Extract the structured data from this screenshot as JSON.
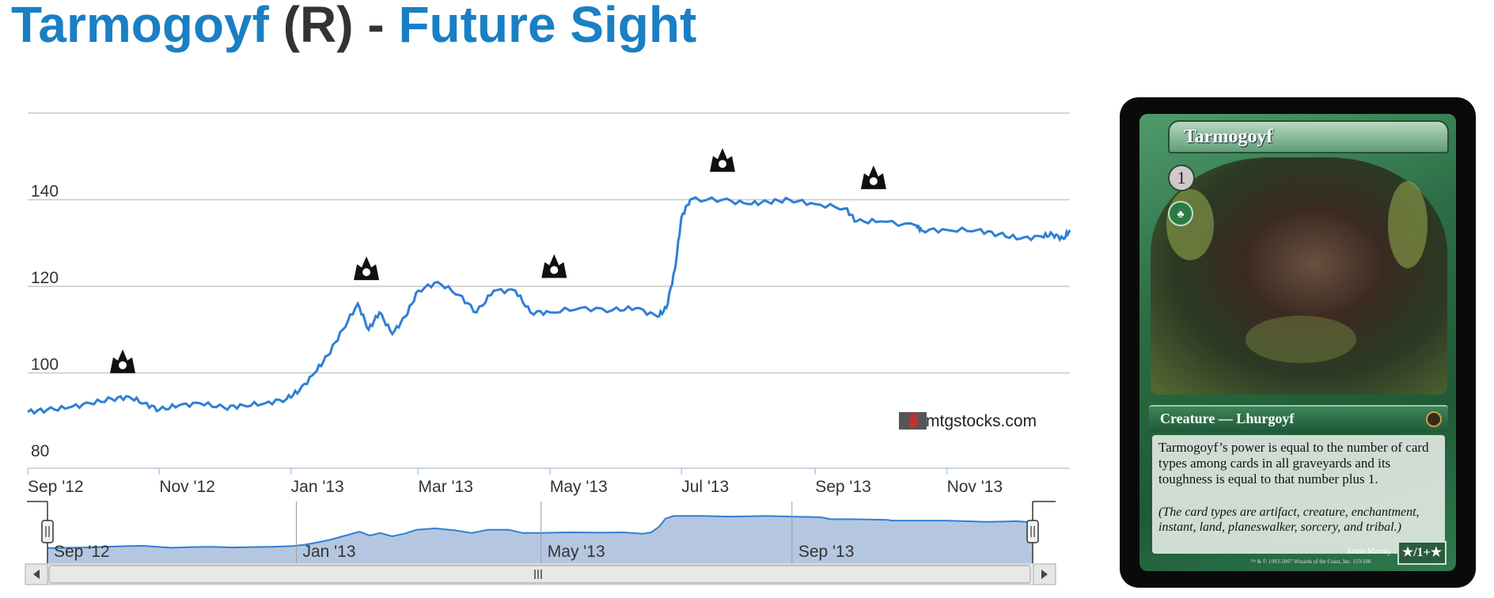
{
  "title": {
    "card_name": "Tarmogoyf",
    "rarity": "(R)",
    "separator": "-",
    "set_name": "Future Sight"
  },
  "chart_data": {
    "type": "line",
    "title": "",
    "xlabel": "",
    "ylabel": "",
    "ylim": [
      78,
      160
    ],
    "y_ticks": [
      80,
      100,
      120,
      140
    ],
    "y_tick_labels": [
      "80",
      "100",
      "120",
      "140"
    ],
    "x_ticks": [
      "2012-09-01",
      "2012-11-01",
      "2013-01-01",
      "2013-03-01",
      "2013-05-01",
      "2013-07-01",
      "2013-09-01",
      "2013-11-01"
    ],
    "x_tick_labels": [
      "Sep '12",
      "Nov '12",
      "Jan '13",
      "Mar '13",
      "May '13",
      "Jul '13",
      "Sep '13",
      "Nov '13"
    ],
    "xlim": [
      "2012-09-01",
      "2013-12-28"
    ],
    "series": [
      {
        "values": [
          [
            "2012-09-01",
            91
          ],
          [
            "2012-09-10",
            91.5
          ],
          [
            "2012-09-20",
            92
          ],
          [
            "2012-09-30",
            93
          ],
          [
            "2012-10-10",
            94
          ],
          [
            "2012-10-18",
            94.5
          ],
          [
            "2012-10-25",
            93
          ],
          [
            "2012-11-01",
            91.5
          ],
          [
            "2012-11-10",
            92.5
          ],
          [
            "2012-11-20",
            93
          ],
          [
            "2012-12-01",
            92
          ],
          [
            "2012-12-10",
            92.5
          ],
          [
            "2012-12-20",
            93
          ],
          [
            "2012-12-30",
            94
          ],
          [
            "2013-01-05",
            96
          ],
          [
            "2013-01-12",
            100
          ],
          [
            "2013-01-18",
            104
          ],
          [
            "2013-01-25",
            110
          ],
          [
            "2013-02-01",
            116
          ],
          [
            "2013-02-06",
            110
          ],
          [
            "2013-02-11",
            114
          ],
          [
            "2013-02-17",
            109
          ],
          [
            "2013-02-23",
            113
          ],
          [
            "2013-03-01",
            119
          ],
          [
            "2013-03-10",
            121
          ],
          [
            "2013-03-20",
            118
          ],
          [
            "2013-03-28",
            114
          ],
          [
            "2013-04-05",
            119
          ],
          [
            "2013-04-15",
            119
          ],
          [
            "2013-04-22",
            114
          ],
          [
            "2013-05-01",
            114
          ],
          [
            "2013-05-15",
            115
          ],
          [
            "2013-05-30",
            114.5
          ],
          [
            "2013-06-10",
            115
          ],
          [
            "2013-06-20",
            113
          ],
          [
            "2013-06-24",
            115
          ],
          [
            "2013-06-28",
            124
          ],
          [
            "2013-07-01",
            136
          ],
          [
            "2013-07-05",
            140
          ],
          [
            "2013-07-20",
            140
          ],
          [
            "2013-08-01",
            139
          ],
          [
            "2013-08-10",
            139.5
          ],
          [
            "2013-08-20",
            140
          ],
          [
            "2013-09-01",
            139
          ],
          [
            "2013-09-15",
            138
          ],
          [
            "2013-09-20",
            135
          ],
          [
            "2013-10-01",
            135
          ],
          [
            "2013-10-18",
            134
          ],
          [
            "2013-10-20",
            133
          ],
          [
            "2013-11-01",
            133
          ],
          [
            "2013-11-15",
            133
          ],
          [
            "2013-11-25",
            132
          ],
          [
            "2013-12-05",
            131
          ],
          [
            "2013-12-15",
            131.5
          ],
          [
            "2013-12-20",
            132
          ],
          [
            "2013-12-25",
            131
          ],
          [
            "2013-12-28",
            133
          ]
        ]
      }
    ],
    "event_markers": [
      {
        "date": "2012-10-15",
        "value": 102.5,
        "icon": "set-symbol-icon"
      },
      {
        "date": "2013-02-05",
        "value": 124,
        "icon": "set-symbol-icon"
      },
      {
        "date": "2013-05-03",
        "value": 124.5,
        "icon": "set-symbol-icon"
      },
      {
        "date": "2013-07-20",
        "value": 149,
        "icon": "set-symbol-icon"
      },
      {
        "date": "2013-09-28",
        "value": 145,
        "icon": "set-symbol-icon"
      }
    ],
    "watermark": "mtgstocks.com",
    "navigator": {
      "tick_labels": [
        "Sep '12",
        "Jan '13",
        "May '13",
        "Sep '13"
      ],
      "tick_dates": [
        "2012-09-01",
        "2013-01-01",
        "2013-05-01",
        "2013-09-01"
      ]
    },
    "colors": {
      "line": "#2f7fd6",
      "grid": "#c8c8c8",
      "navigator_fill": "#b5c7e0",
      "navigator_line": "#2f7fd6",
      "text": "#333333"
    }
  },
  "card": {
    "name": "Tarmogoyf",
    "cost": "1",
    "type_line": "Creature — Lhurgoyf",
    "rules_text": "Tarmogoyf’s power is equal to the number of card types among cards in all graveyards and its toughness is equal to that number plus 1.",
    "reminder_text": "(The card types are artifact, creature, enchantment, instant, land, planeswalker, sorcery, and tribal.)",
    "artist": "Justin Murray",
    "copyright": "™ & © 1993-2007 Wizards of the Coast, Inc. 153/180",
    "power_toughness": "★/1+★"
  }
}
